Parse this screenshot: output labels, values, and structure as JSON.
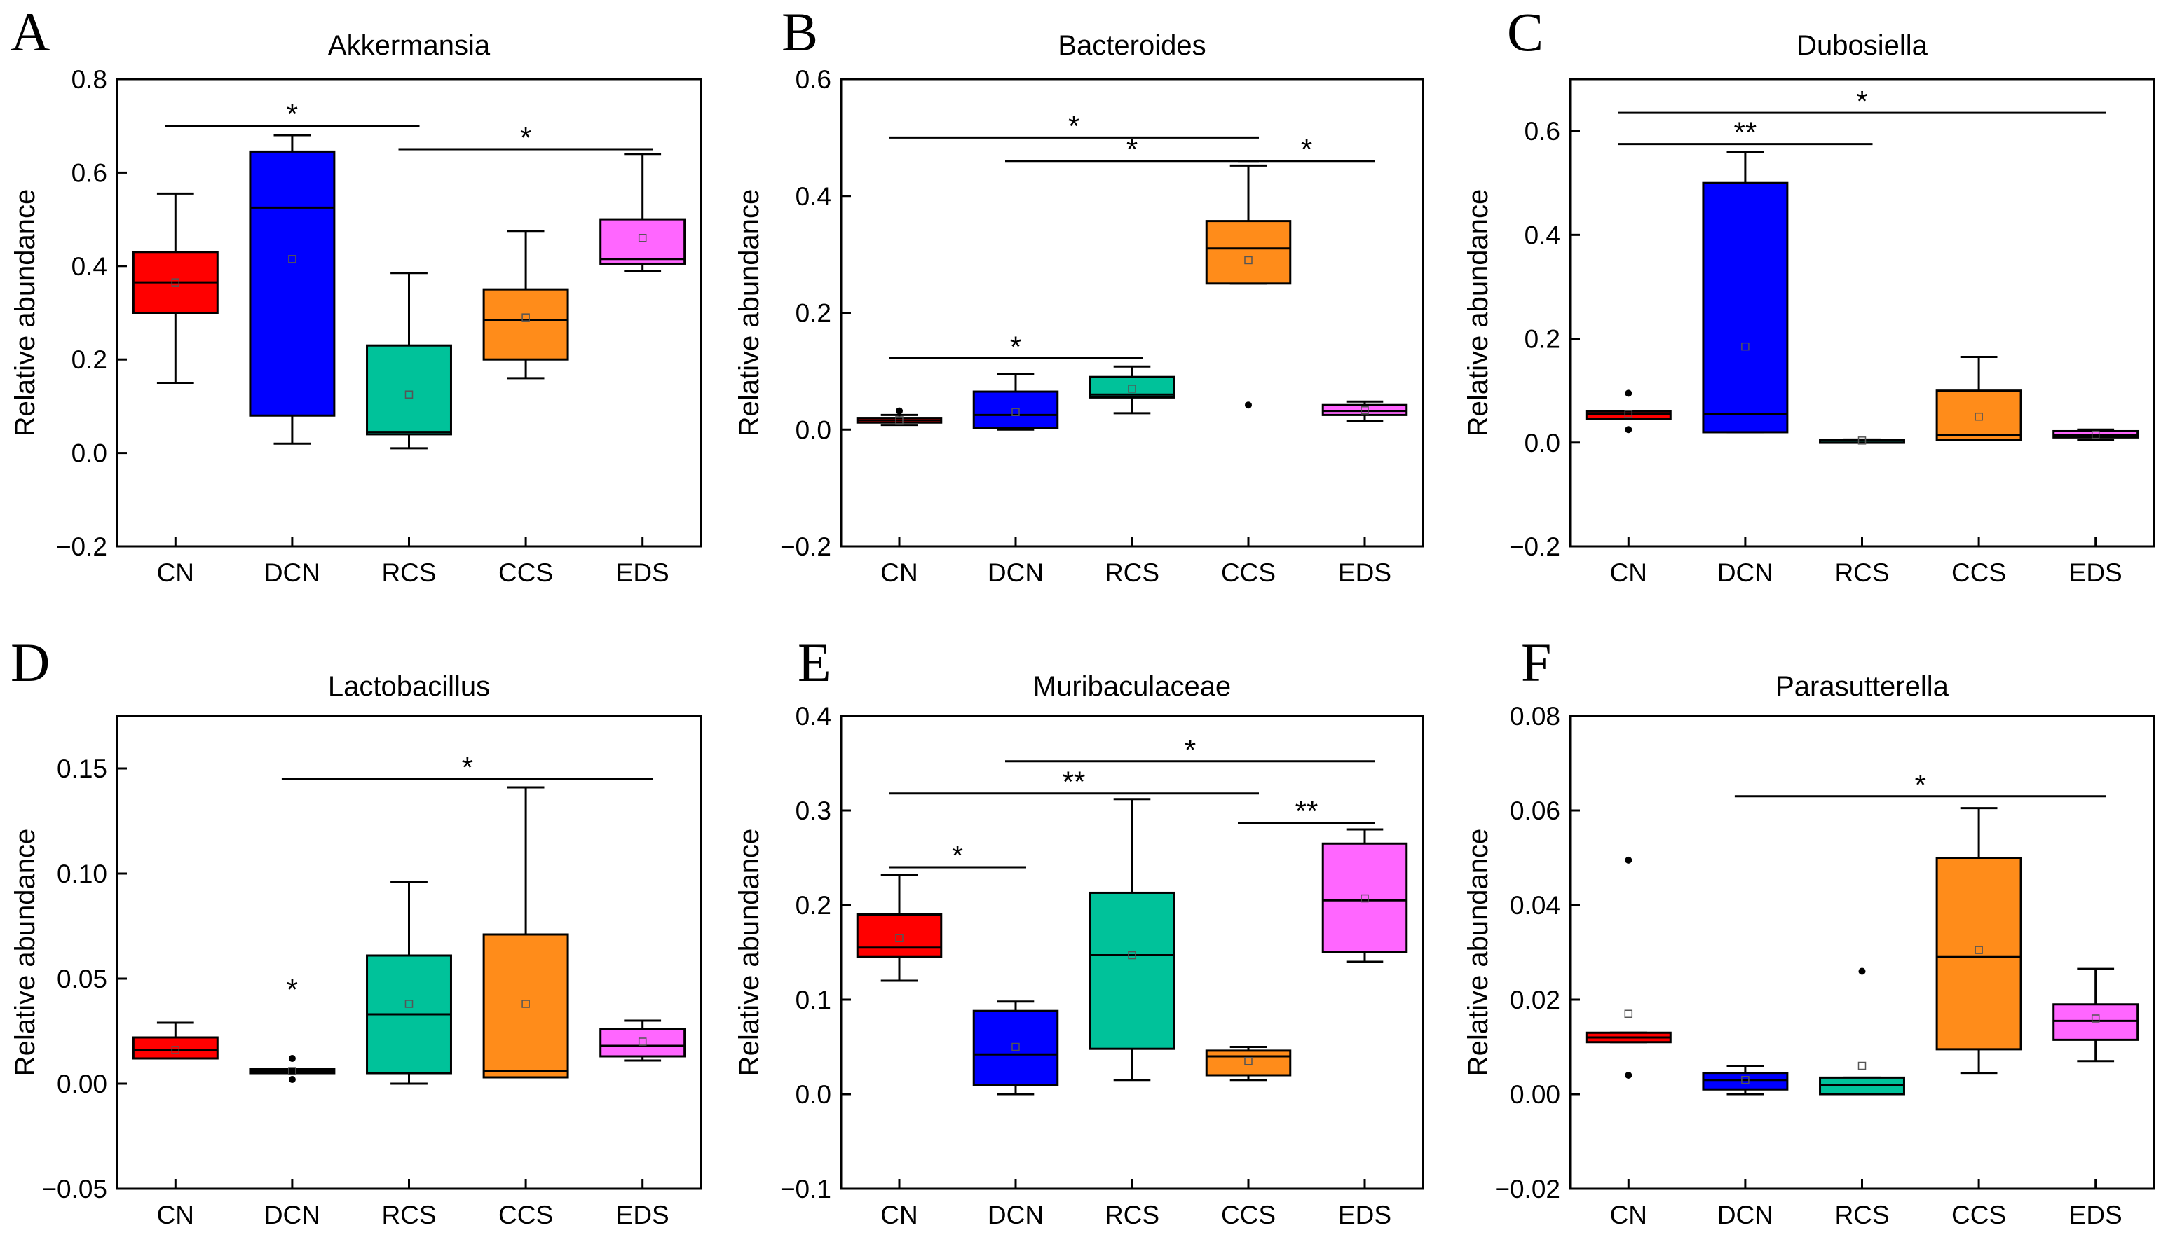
{
  "colors": {
    "CN": "#ff0000",
    "DCN": "#0000ff",
    "RCS": "#00c29a",
    "CCS": "#ff8c1a",
    "EDS": "#ff66ff"
  },
  "chart_data": [
    {
      "panel": "A",
      "type": "box",
      "title": "Akkermansia",
      "ylabel": "Relative abundance",
      "ylim": [
        -0.2,
        0.8
      ],
      "yticks": [
        -0.2,
        0.0,
        0.2,
        0.4,
        0.6,
        0.8
      ],
      "ytick_labels": [
        "−0.2",
        "0.0",
        "0.2",
        "0.4",
        "0.6",
        "0.8"
      ],
      "categories": [
        "CN",
        "DCN",
        "RCS",
        "CCS",
        "EDS"
      ],
      "boxes": [
        {
          "group": "CN",
          "min": 0.15,
          "q1": 0.3,
          "median": 0.365,
          "q3": 0.43,
          "max": 0.555,
          "mean": 0.365,
          "outliers": []
        },
        {
          "group": "DCN",
          "min": 0.02,
          "q1": 0.08,
          "median": 0.525,
          "q3": 0.645,
          "max": 0.68,
          "mean": 0.415,
          "outliers": []
        },
        {
          "group": "RCS",
          "min": 0.01,
          "q1": 0.04,
          "median": 0.045,
          "q3": 0.23,
          "max": 0.385,
          "mean": 0.125,
          "outliers": []
        },
        {
          "group": "CCS",
          "min": 0.16,
          "q1": 0.2,
          "median": 0.285,
          "q3": 0.35,
          "max": 0.475,
          "mean": 0.29,
          "outliers": []
        },
        {
          "group": "EDS",
          "min": 0.39,
          "q1": 0.405,
          "median": 0.415,
          "q3": 0.5,
          "max": 0.64,
          "mean": 0.46,
          "outliers": []
        }
      ],
      "significance": [
        {
          "from": "CN",
          "to": "RCS",
          "y": 0.7,
          "label": "*"
        },
        {
          "from": "RCS",
          "to": "EDS",
          "y": 0.65,
          "label": "*"
        }
      ]
    },
    {
      "panel": "B",
      "type": "box",
      "title": "Bacteroides",
      "ylabel": "Relative abundance",
      "ylim": [
        -0.2,
        0.6
      ],
      "yticks": [
        -0.2,
        0.0,
        0.2,
        0.4,
        0.6
      ],
      "ytick_labels": [
        "−0.2",
        "0.0",
        "0.2",
        "0.4",
        "0.6"
      ],
      "categories": [
        "CN",
        "DCN",
        "RCS",
        "CCS",
        "EDS"
      ],
      "boxes": [
        {
          "group": "CN",
          "min": 0.008,
          "q1": 0.012,
          "median": 0.016,
          "q3": 0.02,
          "max": 0.025,
          "mean": 0.016,
          "outliers": [
            0.032
          ]
        },
        {
          "group": "DCN",
          "min": 0.0,
          "q1": 0.003,
          "median": 0.025,
          "q3": 0.065,
          "max": 0.095,
          "mean": 0.03,
          "outliers": []
        },
        {
          "group": "RCS",
          "min": 0.028,
          "q1": 0.055,
          "median": 0.06,
          "q3": 0.09,
          "max": 0.108,
          "mean": 0.07,
          "outliers": []
        },
        {
          "group": "CCS",
          "min": 0.25,
          "q1": 0.25,
          "median": 0.31,
          "q3": 0.357,
          "max": 0.452,
          "mean": 0.29,
          "outliers": [
            0.042
          ]
        },
        {
          "group": "EDS",
          "min": 0.015,
          "q1": 0.025,
          "median": 0.032,
          "q3": 0.042,
          "max": 0.048,
          "mean": 0.033,
          "outliers": []
        }
      ],
      "significance": [
        {
          "from": "CN",
          "to": "CCS",
          "y": 0.5,
          "label": "*"
        },
        {
          "from": "DCN",
          "to": "CCS",
          "y": 0.46,
          "label": "*"
        },
        {
          "from": "CCS",
          "to": "EDS",
          "y": 0.46,
          "label": "*"
        },
        {
          "from": "CN",
          "to": "RCS",
          "y": 0.122,
          "label": "*"
        }
      ]
    },
    {
      "panel": "C",
      "type": "box",
      "title": "Dubosiella",
      "ylabel": "Relative abundance",
      "ylim": [
        -0.2,
        0.7
      ],
      "yticks": [
        -0.2,
        0.0,
        0.2,
        0.4,
        0.6
      ],
      "ytick_labels": [
        "−0.2",
        "0.0",
        "0.2",
        "0.4",
        "0.6"
      ],
      "categories": [
        "CN",
        "DCN",
        "RCS",
        "CCS",
        "EDS"
      ],
      "boxes": [
        {
          "group": "CN",
          "min": 0.045,
          "q1": 0.045,
          "median": 0.055,
          "q3": 0.06,
          "max": 0.06,
          "mean": 0.055,
          "outliers": [
            0.095,
            0.025
          ]
        },
        {
          "group": "DCN",
          "min": 0.02,
          "q1": 0.02,
          "median": 0.055,
          "q3": 0.5,
          "max": 0.56,
          "mean": 0.185,
          "outliers": []
        },
        {
          "group": "RCS",
          "min": 0.002,
          "q1": 0.003,
          "median": 0.004,
          "q3": 0.005,
          "max": 0.006,
          "mean": 0.004,
          "outliers": []
        },
        {
          "group": "CCS",
          "min": 0.005,
          "q1": 0.005,
          "median": 0.015,
          "q3": 0.1,
          "max": 0.165,
          "mean": 0.05,
          "outliers": []
        },
        {
          "group": "EDS",
          "min": 0.005,
          "q1": 0.01,
          "median": 0.015,
          "q3": 0.022,
          "max": 0.025,
          "mean": 0.015,
          "outliers": []
        }
      ],
      "significance": [
        {
          "from": "CN",
          "to": "EDS",
          "y": 0.635,
          "label": "*"
        },
        {
          "from": "CN",
          "to": "RCS",
          "y": 0.575,
          "label": "**"
        }
      ]
    },
    {
      "panel": "D",
      "type": "box",
      "title": "Lactobacillus",
      "ylabel": "Relative abundance",
      "ylim": [
        -0.05,
        0.175
      ],
      "yticks": [
        -0.05,
        0.0,
        0.05,
        0.1,
        0.15
      ],
      "ytick_labels": [
        "−0.05",
        "0.00",
        "0.05",
        "0.10",
        "0.15"
      ],
      "categories": [
        "CN",
        "DCN",
        "RCS",
        "CCS",
        "EDS"
      ],
      "boxes": [
        {
          "group": "CN",
          "min": 0.012,
          "q1": 0.012,
          "median": 0.016,
          "q3": 0.022,
          "max": 0.029,
          "mean": 0.016,
          "outliers": []
        },
        {
          "group": "DCN",
          "min": 0.005,
          "q1": 0.005,
          "median": 0.006,
          "q3": 0.007,
          "max": 0.007,
          "mean": 0.006,
          "outliers": [
            0.012,
            0.002
          ],
          "extreme": [
            0.046
          ]
        },
        {
          "group": "RCS",
          "min": 0.0,
          "q1": 0.005,
          "median": 0.033,
          "q3": 0.061,
          "max": 0.096,
          "mean": 0.038,
          "outliers": []
        },
        {
          "group": "CCS",
          "min": 0.003,
          "q1": 0.003,
          "median": 0.006,
          "q3": 0.071,
          "max": 0.141,
          "mean": 0.038,
          "outliers": []
        },
        {
          "group": "EDS",
          "min": 0.011,
          "q1": 0.013,
          "median": 0.018,
          "q3": 0.026,
          "max": 0.03,
          "mean": 0.02,
          "outliers": []
        }
      ],
      "significance": [
        {
          "from": "DCN",
          "to": "EDS",
          "y": 0.145,
          "label": "*"
        }
      ]
    },
    {
      "panel": "E",
      "type": "box",
      "title": "Muribaculaceae",
      "ylabel": "Relative abundance",
      "ylim": [
        -0.1,
        0.4
      ],
      "yticks": [
        -0.1,
        0.0,
        0.1,
        0.2,
        0.3,
        0.4
      ],
      "ytick_labels": [
        "−0.1",
        "0.0",
        "0.1",
        "0.2",
        "0.3",
        "0.4"
      ],
      "categories": [
        "CN",
        "DCN",
        "RCS",
        "CCS",
        "EDS"
      ],
      "boxes": [
        {
          "group": "CN",
          "min": 0.12,
          "q1": 0.145,
          "median": 0.155,
          "q3": 0.19,
          "max": 0.232,
          "mean": 0.165,
          "outliers": []
        },
        {
          "group": "DCN",
          "min": 0.0,
          "q1": 0.01,
          "median": 0.042,
          "q3": 0.088,
          "max": 0.098,
          "mean": 0.05,
          "outliers": []
        },
        {
          "group": "RCS",
          "min": 0.015,
          "q1": 0.048,
          "median": 0.147,
          "q3": 0.213,
          "max": 0.312,
          "mean": 0.147,
          "outliers": []
        },
        {
          "group": "CCS",
          "min": 0.015,
          "q1": 0.02,
          "median": 0.04,
          "q3": 0.046,
          "max": 0.05,
          "mean": 0.035,
          "outliers": []
        },
        {
          "group": "EDS",
          "min": 0.14,
          "q1": 0.15,
          "median": 0.205,
          "q3": 0.265,
          "max": 0.28,
          "mean": 0.207,
          "outliers": []
        }
      ],
      "significance": [
        {
          "from": "DCN",
          "to": "EDS",
          "y": 0.352,
          "label": "*"
        },
        {
          "from": "CN",
          "to": "CCS",
          "y": 0.318,
          "label": "**"
        },
        {
          "from": "CCS",
          "to": "EDS",
          "y": 0.287,
          "label": "**"
        },
        {
          "from": "CN",
          "to": "DCN",
          "y": 0.24,
          "label": "*"
        }
      ]
    },
    {
      "panel": "F",
      "type": "box",
      "title": "Parasutterella",
      "ylabel": "Relative abundance",
      "ylim": [
        -0.02,
        0.08
      ],
      "yticks": [
        -0.02,
        0.0,
        0.02,
        0.04,
        0.06,
        0.08
      ],
      "ytick_labels": [
        "−0.02",
        "0.00",
        "0.02",
        "0.04",
        "0.06",
        "0.08"
      ],
      "categories": [
        "CN",
        "DCN",
        "RCS",
        "CCS",
        "EDS"
      ],
      "boxes": [
        {
          "group": "CN",
          "min": 0.011,
          "q1": 0.011,
          "median": 0.012,
          "q3": 0.013,
          "max": 0.013,
          "mean": 0.017,
          "outliers": [
            0.0495,
            0.004
          ]
        },
        {
          "group": "DCN",
          "min": 0.0,
          "q1": 0.001,
          "median": 0.003,
          "q3": 0.0045,
          "max": 0.006,
          "mean": 0.003,
          "outliers": []
        },
        {
          "group": "RCS",
          "min": 0.0,
          "q1": 0.0,
          "median": 0.002,
          "q3": 0.0035,
          "max": 0.0035,
          "mean": 0.006,
          "outliers": [
            0.026
          ]
        },
        {
          "group": "CCS",
          "min": 0.0045,
          "q1": 0.0095,
          "median": 0.029,
          "q3": 0.05,
          "max": 0.0605,
          "mean": 0.0305,
          "outliers": []
        },
        {
          "group": "EDS",
          "min": 0.007,
          "q1": 0.0115,
          "median": 0.0155,
          "q3": 0.019,
          "max": 0.0265,
          "mean": 0.016,
          "outliers": []
        }
      ],
      "significance": [
        {
          "from": "DCN",
          "to": "EDS",
          "y": 0.063,
          "label": "*"
        }
      ]
    }
  ]
}
